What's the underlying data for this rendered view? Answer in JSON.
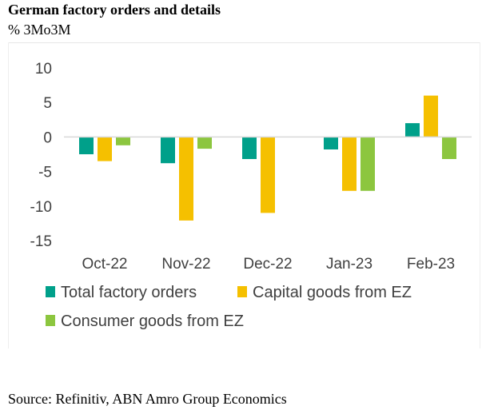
{
  "title": "German factory orders and details",
  "subtitle": "% 3Mo3M",
  "source": "Source: Refinitiv, ABN Amro Group Economics",
  "chart_data": {
    "type": "bar",
    "categories": [
      "Oct-22",
      "Nov-22",
      "Dec-22",
      "Jan-23",
      "Feb-23"
    ],
    "series": [
      {
        "name": "Total factory orders",
        "color": "#00a08a",
        "values": [
          -2.5,
          -3.8,
          -3.2,
          -1.8,
          2.0
        ]
      },
      {
        "name": "Capital goods from EZ",
        "color": "#f5c000",
        "values": [
          -3.5,
          -12.1,
          -11.0,
          -7.8,
          6.0
        ]
      },
      {
        "name": "Consumer goods from EZ",
        "color": "#8cc63f",
        "values": [
          -1.2,
          -1.7,
          0.0,
          -7.8,
          -3.2
        ]
      }
    ],
    "ylim": [
      -15,
      10
    ],
    "yticks": [
      10,
      5,
      0,
      -5,
      -10,
      -15
    ],
    "xlabel": "",
    "ylabel": "",
    "grid": false,
    "legend": "bottom"
  }
}
